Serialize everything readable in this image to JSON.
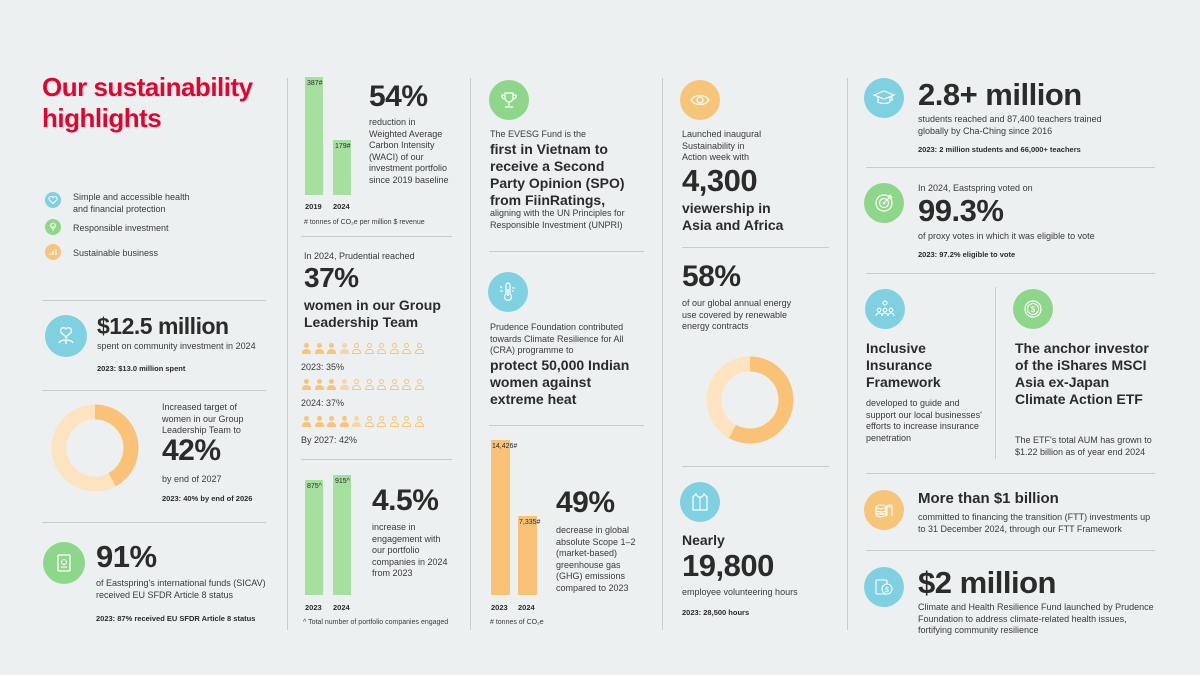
{
  "title": "Our sustainability highlights",
  "legend": [
    {
      "label": "Simple and accessible health and financial protection",
      "icon": "heart-icon",
      "color": "#7fd0e0"
    },
    {
      "label": "Responsible investment",
      "icon": "leaf-icon",
      "color": "#8ed689"
    },
    {
      "label": "Sustainable business",
      "icon": "growth-icon",
      "color": "#f7c57a"
    }
  ],
  "col1": {
    "community": {
      "value": "$12.5 million",
      "desc": "spent on community investment in 2024",
      "note": "2023: $13.0 million spent"
    },
    "women_target": {
      "intro": "Increased target of women in our Group Leadership Team to",
      "value": "42%",
      "desc": "by end of 2027",
      "note": "2023: 40% by end of 2026",
      "fraction": 0.42
    },
    "sicav": {
      "value": "91%",
      "desc": "of Eastspring's international funds (SICAV) received EU SFDR Article 8 status",
      "note": "2023: 87% received EU SFDR Article 8 status"
    }
  },
  "col2": {
    "waci": {
      "value": "54%",
      "desc": "reduction in Weighted Average Carbon Intensity (WACI) of our investment portfolio since 2019 baseline",
      "footnote": "# tonnes of CO₂e per million $ revenue",
      "chart": {
        "years": [
          "2019",
          "2024"
        ],
        "values": [
          387,
          179
        ],
        "labels": [
          "387",
          "179"
        ],
        "mark": "#"
      }
    },
    "women": {
      "intro": "In 2024, Prudential reached",
      "value": "37%",
      "desc": "women in our Group Leadership Team",
      "rows": [
        {
          "label": "2023: 35%",
          "value": 35
        },
        {
          "label": "2024: 37%",
          "value": 37
        },
        {
          "label": "By 2027: 42%",
          "value": 42
        }
      ]
    },
    "engagement": {
      "value": "4.5%",
      "desc": "increase in engagement with our portfolio companies in 2024 from 2023",
      "footnote": "^ Total number of portfolio companies engaged",
      "chart": {
        "years": [
          "2023",
          "2024"
        ],
        "values": [
          875,
          915
        ],
        "labels": [
          "875",
          "915"
        ],
        "mark": "^"
      }
    }
  },
  "col3": {
    "evesg": {
      "intro": "The EVESG Fund is the",
      "headline": "first in Vietnam to receive a Second Party Opinion (SPO) from FiinRatings,",
      "desc": "aligning with the UN Principles for Responsible Investment (UNPRI)"
    },
    "cra": {
      "intro": "Prudence Foundation contributed towards Climate Resilience for All (CRA) programme to",
      "headline": "protect 50,000 Indian women against extreme heat"
    },
    "ghg": {
      "value": "49%",
      "desc": "decrease in global absolute Scope 1–2 (market-based) greenhouse gas (GHG) emissions compared to 2023",
      "footnote": "# tonnes of CO₂e",
      "chart": {
        "years": [
          "2023",
          "2024"
        ],
        "values": [
          14426,
          7335
        ],
        "labels": [
          "14,426",
          "7,335"
        ],
        "mark": "#"
      }
    }
  },
  "col4": {
    "week": {
      "intro": "Launched inaugural Sustainability in Action week with",
      "value": "4,300",
      "desc": "viewership in Asia and Africa"
    },
    "energy": {
      "value": "58%",
      "desc": "of our global annual energy use covered by renewable energy contracts",
      "fraction": 0.58
    },
    "volunteer": {
      "intro": "Nearly",
      "value": "19,800",
      "desc": "employee volunteering hours",
      "note": "2023: 28,500 hours"
    }
  },
  "col5": {
    "students": {
      "value": "2.8+ million",
      "desc": "students reached and 87,400 teachers trained globally by Cha-Ching since 2016",
      "note": "2023: 2 million students and 66,000+ teachers"
    },
    "proxy": {
      "intro": "In 2024, Eastspring voted on",
      "value": "99.3%",
      "desc": "of proxy votes in which it was eligible to vote",
      "note": "2023: 97.2% eligible to vote"
    },
    "insurance": {
      "headline": "Inclusive Insurance Framework",
      "desc": "developed to guide and support our local businesses' efforts to increase insurance penetration"
    },
    "etf": {
      "headline": "The anchor investor of the iShares MSCI Asia ex-Japan Climate Action ETF",
      "desc": "The ETF's total AUM has grown to $1.22 billion as of year end 2024"
    },
    "ftt": {
      "headline": "More than $1 billion",
      "desc": "committed to financing the transition (FTT) investments up to 31 December 2024, through our FTT Framework"
    },
    "fund": {
      "value": "$2 million",
      "desc": "Climate and Health Resilience Fund launched by Prudence Foundation to address climate-related health issues, fortifying community resilience"
    }
  },
  "colors": {
    "title": "#e4032e",
    "health": "#7fd0e0",
    "responsible": "#8ed689",
    "business": "#f7c57a",
    "bar_green": "#a6e09f",
    "bar_orange": "#f9c276"
  }
}
